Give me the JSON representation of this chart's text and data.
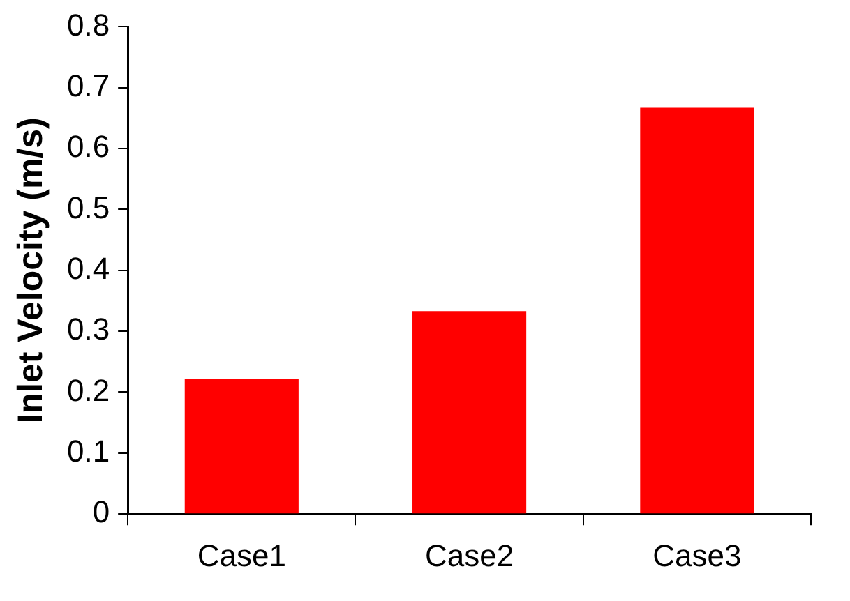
{
  "chart_data": {
    "type": "bar",
    "ylabel": "Inlet Velocity (m/s)",
    "categories": [
      "Case1",
      "Case2",
      "Case3"
    ],
    "values": [
      0.222,
      0.333,
      0.667
    ],
    "color": "#ff0000",
    "ylim": [
      0,
      0.8
    ],
    "yticks": [
      0,
      0.1,
      0.2,
      0.3,
      0.4,
      0.5,
      0.6,
      0.7,
      0.8
    ],
    "grid": false,
    "legend": false
  }
}
